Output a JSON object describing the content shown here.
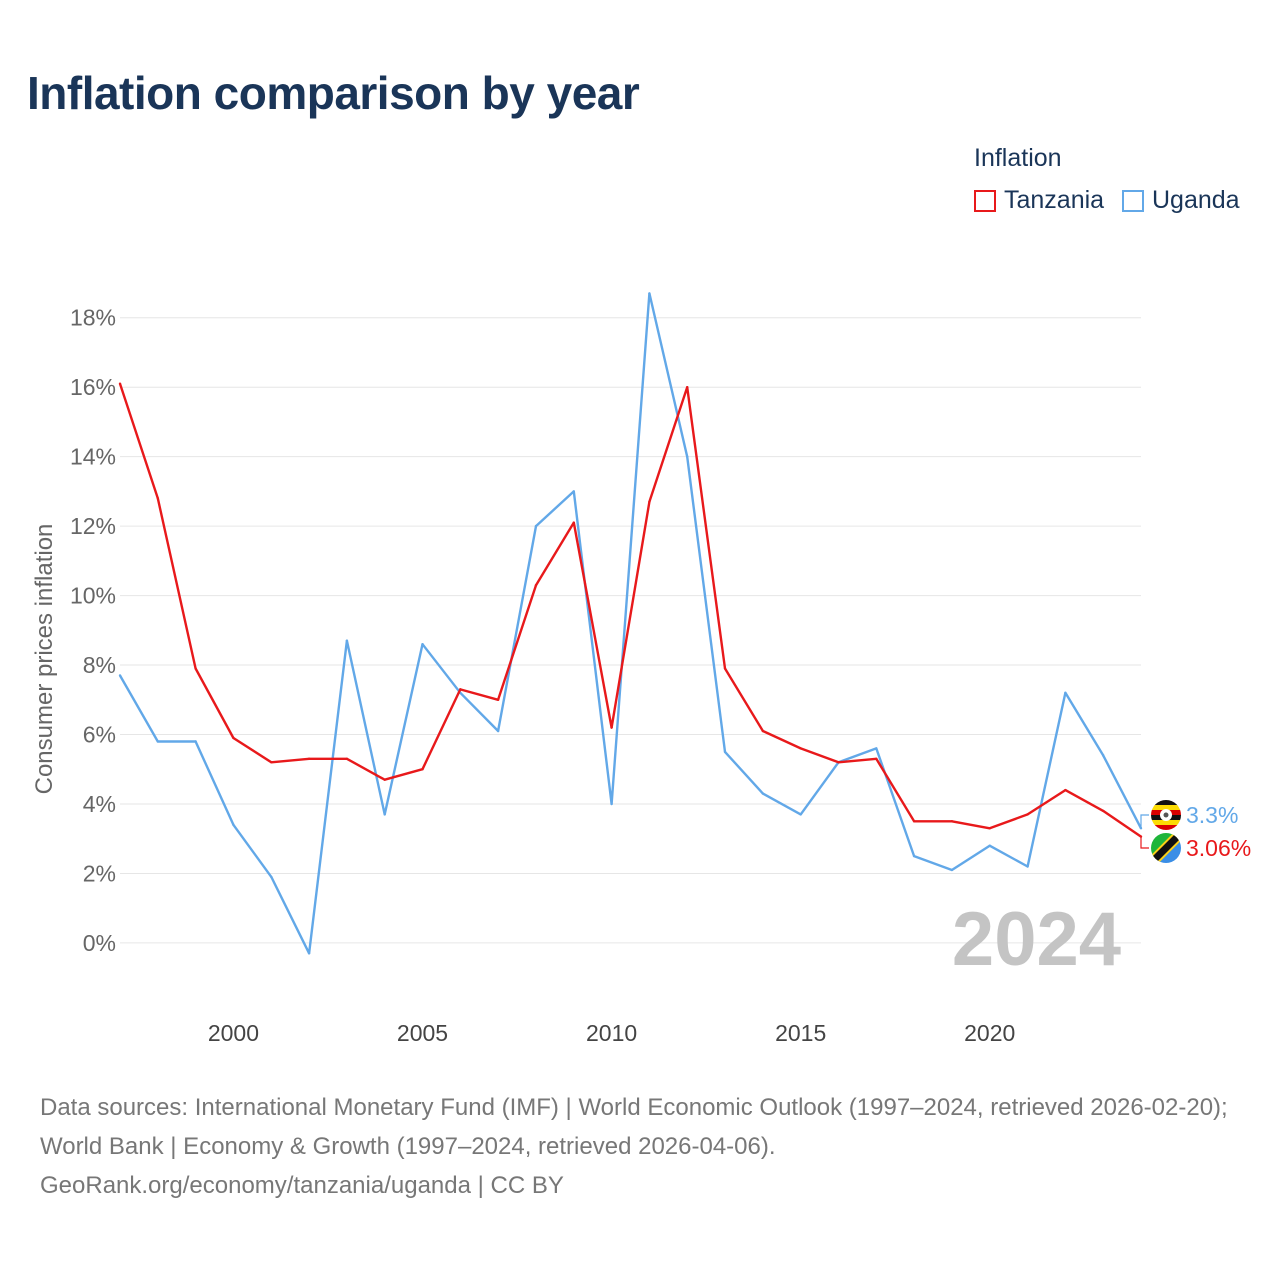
{
  "title": "Inflation comparison by year",
  "legend": {
    "title": "Inflation",
    "items": [
      {
        "label": "Tanzania",
        "color": "#e8191b"
      },
      {
        "label": "Uganda",
        "color": "#62a8e8"
      }
    ]
  },
  "chart_data": {
    "type": "line",
    "title": "Inflation comparison by year",
    "xlabel": "",
    "ylabel": "Consumer prices inflation",
    "xlim": [
      1997,
      2024
    ],
    "ylim": [
      -1.5,
      19
    ],
    "yticks": [
      0,
      2,
      4,
      6,
      8,
      10,
      12,
      14,
      16,
      18
    ],
    "ytick_labels": [
      "0%",
      "2%",
      "4%",
      "6%",
      "8%",
      "10%",
      "12%",
      "14%",
      "16%",
      "18%"
    ],
    "xticks": [
      2000,
      2005,
      2010,
      2015,
      2020
    ],
    "xtick_labels": [
      "2000",
      "2005",
      "2010",
      "2015",
      "2020"
    ],
    "grid": true,
    "year_label": "2024",
    "x": [
      1997,
      1998,
      1999,
      2000,
      2001,
      2002,
      2003,
      2004,
      2005,
      2006,
      2007,
      2008,
      2009,
      2010,
      2011,
      2012,
      2013,
      2014,
      2015,
      2016,
      2017,
      2018,
      2019,
      2020,
      2021,
      2022,
      2023,
      2024
    ],
    "series": [
      {
        "name": "Tanzania",
        "color": "#e8191b",
        "flag": "tanzania-flag",
        "end_label": "3.06%",
        "values": [
          16.1,
          12.8,
          7.9,
          5.9,
          5.2,
          5.3,
          5.3,
          4.7,
          5.0,
          7.3,
          7.0,
          10.3,
          12.1,
          6.2,
          12.7,
          16.0,
          7.9,
          6.1,
          5.6,
          5.2,
          5.3,
          3.5,
          3.5,
          3.3,
          3.7,
          4.4,
          3.8,
          3.06
        ]
      },
      {
        "name": "Uganda",
        "color": "#62a8e8",
        "flag": "uganda-flag",
        "end_label": "3.3%",
        "values": [
          7.7,
          5.8,
          5.8,
          3.4,
          1.9,
          -0.3,
          8.7,
          3.7,
          8.6,
          7.2,
          6.1,
          12.0,
          13.0,
          4.0,
          18.7,
          14.0,
          5.5,
          4.3,
          3.7,
          5.2,
          5.6,
          2.5,
          2.1,
          2.8,
          2.2,
          7.2,
          5.4,
          3.3
        ]
      }
    ]
  },
  "source": {
    "line1": "Data sources: International Monetary Fund (IMF) | World Economic Outlook (1997–2024, retrieved 2026-02-20); World Bank | Economy & Growth (1997–2024, retrieved 2026-04-06).",
    "line2": "GeoRank.org/economy/tanzania/uganda | CC BY"
  }
}
